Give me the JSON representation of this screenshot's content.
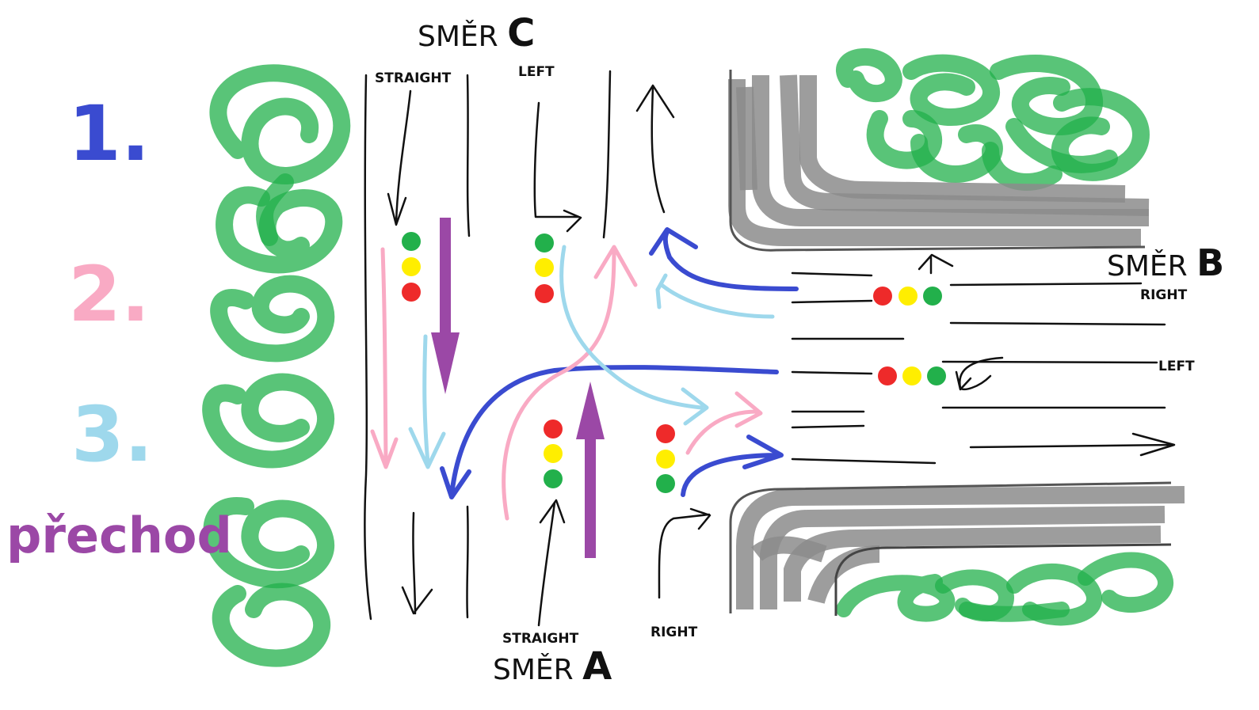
{
  "legend": {
    "item1": "1.",
    "item2": "2.",
    "item3": "3.",
    "crossing": "přechod"
  },
  "directions": {
    "c": {
      "prefix": "SMĚR ",
      "letter": "C"
    },
    "b": {
      "prefix": "SMĚR ",
      "letter": "B"
    },
    "a": {
      "prefix": "SMĚR ",
      "letter": "A"
    }
  },
  "lane_labels": {
    "c_straight": "STRAIGHT",
    "c_left": "LEFT",
    "b_right": "RIGHT",
    "b_left": "LEFT",
    "a_straight": "STRAIGHT",
    "a_right": "RIGHT"
  },
  "colors": {
    "phase1": "#3a4bd0",
    "phase2": "#f9aac4",
    "phase3": "#9ed8ec",
    "crossing": "#9b48a6",
    "vegetation": "#22b04b",
    "curb": "#8c8c8c",
    "light_red": "#ee2a2a",
    "light_yellow": "#ffee00",
    "light_green": "#22b04b"
  }
}
